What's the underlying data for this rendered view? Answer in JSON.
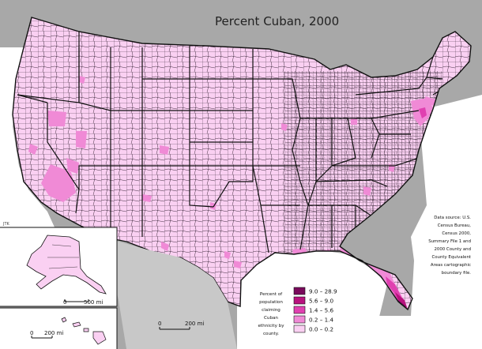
{
  "title": "Percent Cuban, 2000",
  "source_note": [
    "Data source: U.S.",
    "Census Bureau,",
    "Census 2000,",
    "Summary File 1 and",
    "2000 County and",
    "County Equivalent",
    "Areas cartographic",
    "boundary file."
  ],
  "legend": {
    "label_lines": [
      "Percent of",
      "population",
      "claiming",
      "Cuban",
      "ethnicity by",
      "county."
    ],
    "classes": [
      {
        "range": "9.0 – 28.9",
        "color": "#7a0a5c"
      },
      {
        "range": "5.6 – 9.0",
        "color": "#b8127e"
      },
      {
        "range": "1.4 – 5.6",
        "color": "#e040b0"
      },
      {
        "range": "0.2 – 1.4",
        "color": "#f08ad6"
      },
      {
        "range": "0.0 – 0.2",
        "color": "#fad0f2"
      }
    ]
  },
  "scales": {
    "conus_zero": "0",
    "conus_label": "200 mi",
    "alaska_zero": "0",
    "alaska_label": "500 mi",
    "hawaii_zero": "0",
    "hawaii_label": "200 mi"
  },
  "credit": "JTK",
  "colors": {
    "background": "#a8a8a8",
    "water": "#ffffff",
    "land_base": "#fad0f2",
    "border": "#1a1a1a"
  }
}
